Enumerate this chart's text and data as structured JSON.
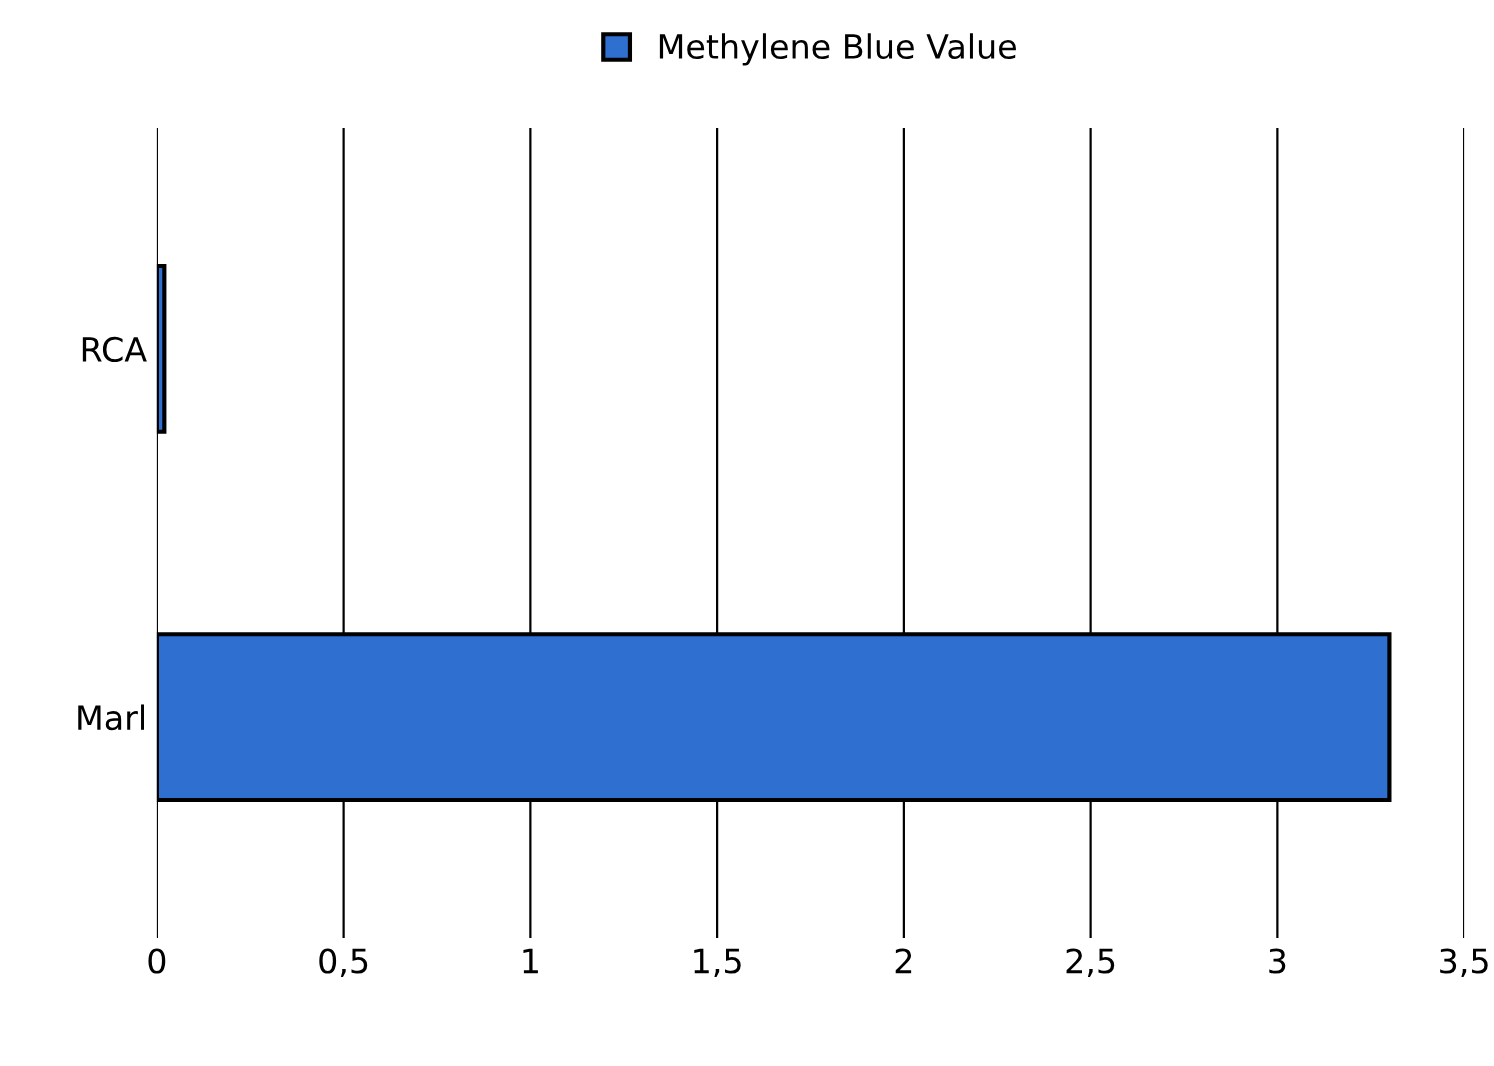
{
  "chart_data": {
    "type": "bar",
    "orientation": "horizontal",
    "categories": [
      "RCA",
      "Marl"
    ],
    "series": [
      {
        "name": "Methylene Blue Value",
        "color": "#2f6fd0",
        "values": [
          0.02,
          3.3
        ]
      }
    ],
    "xlim": [
      0,
      3.5
    ],
    "xticks": [
      0,
      {
        "value": 0.5,
        "label": "0,5"
      },
      1,
      {
        "value": 1.5,
        "label": "1,5"
      },
      2,
      {
        "value": 2.5,
        "label": "2,5"
      },
      3,
      {
        "value": 3.5,
        "label": "3,5"
      }
    ],
    "grid": "x",
    "legend": "top"
  }
}
